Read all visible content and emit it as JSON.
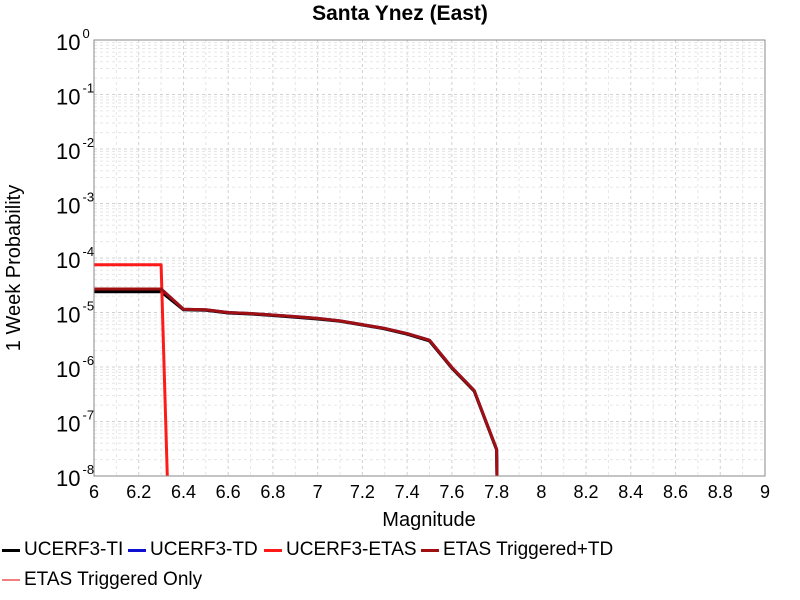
{
  "chart_data": {
    "type": "line",
    "title": "Santa Ynez (East)",
    "xlabel": "Magnitude",
    "ylabel": "1 Week Probability",
    "xlim": [
      6,
      9
    ],
    "ylim": [
      1e-08,
      1
    ],
    "yscale": "log",
    "grid": true,
    "legend_position": "bottom",
    "x_ticks": [
      "6",
      "6.2",
      "6.4",
      "6.6",
      "6.8",
      "7",
      "7.2",
      "7.4",
      "7.6",
      "7.8",
      "8",
      "8.2",
      "8.4",
      "8.6",
      "8.8",
      "9"
    ],
    "y_ticks": [
      {
        "base": "10",
        "exp": "0"
      },
      {
        "base": "10",
        "exp": "-1"
      },
      {
        "base": "10",
        "exp": "-2"
      },
      {
        "base": "10",
        "exp": "-3"
      },
      {
        "base": "10",
        "exp": "-4"
      },
      {
        "base": "10",
        "exp": "-5"
      },
      {
        "base": "10",
        "exp": "-6"
      },
      {
        "base": "10",
        "exp": "-7"
      },
      {
        "base": "10",
        "exp": "-8"
      }
    ],
    "series": [
      {
        "name": "UCERF3-TI",
        "color": "#000000",
        "width": 3,
        "x": [
          6.0,
          6.3,
          6.4,
          6.5,
          6.6,
          6.7,
          6.8,
          6.9,
          7.0,
          7.1,
          7.2,
          7.3,
          7.4,
          7.5,
          7.6,
          7.7,
          7.8,
          7.805
        ],
        "y": [
          2.4e-05,
          2.4e-05,
          1.12e-05,
          1.1e-05,
          9.8e-06,
          9.4e-06,
          8.8e-06,
          8.2e-06,
          7.6e-06,
          6.9e-06,
          5.9e-06,
          5e-06,
          4e-06,
          3e-06,
          9.5e-07,
          3.6e-07,
          3e-08,
          1e-09
        ]
      },
      {
        "name": "UCERF3-TD",
        "color": "#1010d0",
        "width": 3,
        "x": [
          6.0,
          6.3,
          6.4,
          6.5,
          6.6,
          6.7,
          6.8,
          6.9,
          7.0,
          7.1,
          7.2,
          7.3,
          7.4,
          7.5,
          7.6,
          7.7,
          7.8,
          7.805
        ],
        "y": [
          2.7e-05,
          2.7e-05,
          1.15e-05,
          1.12e-05,
          1e-05,
          9.6e-06,
          9e-06,
          8.4e-06,
          7.8e-06,
          7e-06,
          6e-06,
          5.1e-06,
          4.1e-06,
          3.1e-06,
          9.8e-07,
          3.7e-07,
          3.1e-08,
          1e-09
        ]
      },
      {
        "name": "UCERF3-ETAS",
        "color": "#ff1a1a",
        "width": 3,
        "x": [
          6.0,
          6.3,
          6.335
        ],
        "y": [
          7.5e-05,
          7.5e-05,
          1e-09
        ]
      },
      {
        "name": "ETAS Triggered+TD",
        "color": "#a01010",
        "width": 3,
        "x": [
          6.0,
          6.3,
          6.4,
          6.5,
          6.6,
          6.7,
          6.8,
          6.9,
          7.0,
          7.1,
          7.2,
          7.3,
          7.4,
          7.5,
          7.6,
          7.7,
          7.8,
          7.805
        ],
        "y": [
          2.7e-05,
          2.7e-05,
          1.15e-05,
          1.12e-05,
          1e-05,
          9.6e-06,
          9e-06,
          8.4e-06,
          7.8e-06,
          7e-06,
          6e-06,
          5.1e-06,
          4.1e-06,
          3.1e-06,
          9.8e-07,
          3.7e-07,
          3.1e-08,
          1e-09
        ]
      },
      {
        "name": "ETAS Triggered Only",
        "color": "#f08080",
        "width": 1.5,
        "x": [],
        "y": []
      }
    ]
  }
}
